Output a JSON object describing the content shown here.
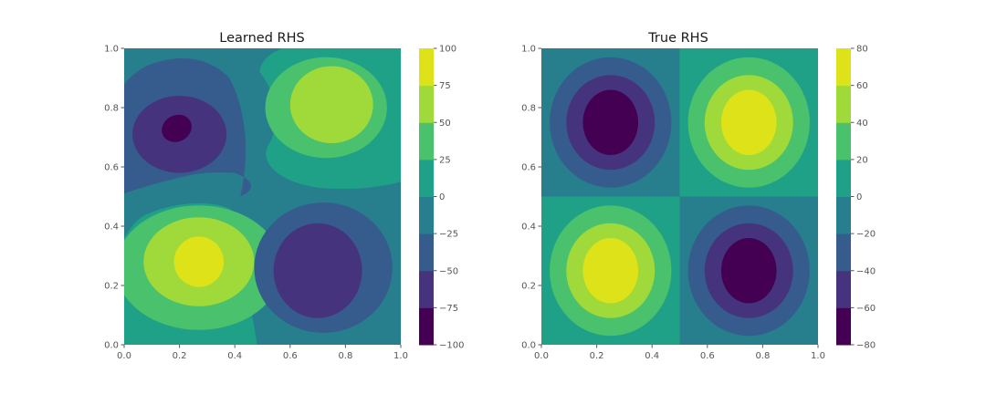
{
  "chart_data": [
    {
      "type": "contour",
      "title": "Learned RHS",
      "xlim": [
        0,
        1
      ],
      "ylim": [
        0,
        1
      ],
      "xticks": [
        "0.0",
        "0.2",
        "0.4",
        "0.6",
        "0.8",
        "1.0"
      ],
      "yticks": [
        "0.0",
        "0.2",
        "0.4",
        "0.6",
        "0.8",
        "1.0"
      ],
      "colorbar": {
        "levels": [
          -100,
          -75,
          -50,
          -25,
          0,
          25,
          50,
          75,
          100
        ],
        "ticks": [
          "100",
          "75",
          "50",
          "25",
          "0",
          "−25",
          "−50",
          "−75",
          "−100"
        ]
      },
      "features": [
        {
          "x": 0.2,
          "y": 0.73,
          "value": -95
        },
        {
          "x": 0.74,
          "y": 0.8,
          "value": 70
        },
        {
          "x": 0.27,
          "y": 0.28,
          "value": 90
        },
        {
          "x": 0.73,
          "y": 0.27,
          "value": -70
        }
      ]
    },
    {
      "type": "contour",
      "title": "True RHS",
      "xlim": [
        0,
        1
      ],
      "ylim": [
        0,
        1
      ],
      "xticks": [
        "0.0",
        "0.2",
        "0.4",
        "0.6",
        "0.8",
        "1.0"
      ],
      "yticks": [
        "0.0",
        "0.2",
        "0.4",
        "0.6",
        "0.8",
        "1.0"
      ],
      "colorbar": {
        "levels": [
          -80,
          -60,
          -40,
          -20,
          0,
          20,
          40,
          60,
          80
        ],
        "ticks": [
          "80",
          "60",
          "40",
          "20",
          "0",
          "−20",
          "−40",
          "−60",
          "−80"
        ]
      },
      "features": [
        {
          "x": 0.25,
          "y": 0.75,
          "value": -80
        },
        {
          "x": 0.75,
          "y": 0.75,
          "value": 80
        },
        {
          "x": 0.25,
          "y": 0.25,
          "value": 80
        },
        {
          "x": 0.75,
          "y": 0.25,
          "value": -80
        }
      ]
    }
  ],
  "colors": {
    "viridis_bands": [
      "#440154",
      "#46337e",
      "#365c8d",
      "#277f8e",
      "#1fa187",
      "#4ac16d",
      "#9fda3a",
      "#dde318"
    ],
    "text": "#1a1a1a",
    "ticks": "#555555"
  }
}
